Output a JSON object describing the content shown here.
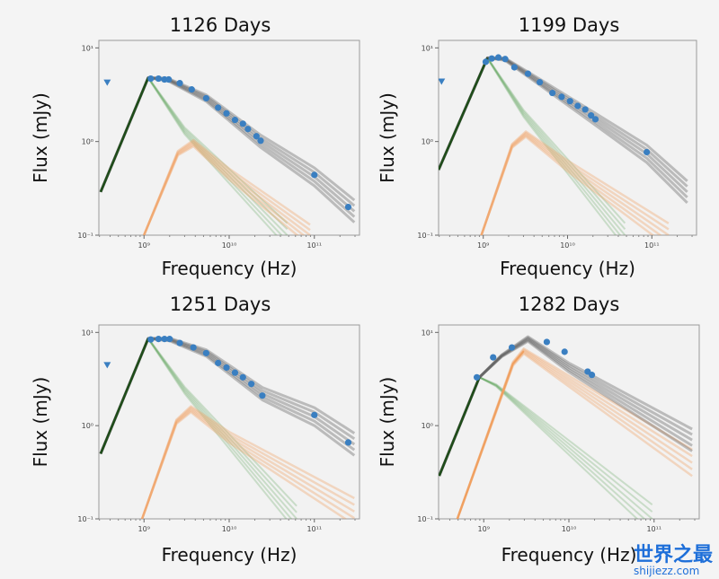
{
  "chart_data": {
    "type": "line",
    "x_scale": "log",
    "y_scale": "log",
    "xlim_log10_hz": [
      8.47,
      11.53
    ],
    "ylim_log10_mjy": [
      -1,
      1.08
    ],
    "x_tick_labels": [
      "10⁹",
      "10¹⁰",
      "10¹¹"
    ],
    "x_tick_values_hz": [
      1000000000.0,
      10000000000.0,
      100000000000.0
    ],
    "y_tick_labels": [
      "10⁻¹",
      "10⁰",
      "10¹"
    ],
    "y_tick_values_mjy": [
      0.1,
      1,
      10
    ],
    "colors": {
      "data": "#3a7fc1",
      "total": "#555555",
      "component1": "#4f9a4a",
      "component1_dark": "#1f4d1a",
      "component2": "#f0a060"
    },
    "panels": [
      {
        "title": "1126 Days",
        "xlabel": "Frequency (Hz)",
        "ylabel": "Flux (mJy)",
        "upper_limits": [
          [
            370000000.0,
            4.3
          ]
        ],
        "points": [
          [
            1200000000.0,
            4.7
          ],
          [
            1480000000.0,
            4.7
          ],
          [
            1740000000.0,
            4.6
          ],
          [
            1950000000.0,
            4.6
          ],
          [
            2630000000.0,
            4.2
          ],
          [
            3630000000.0,
            3.6
          ],
          [
            5370000000.0,
            2.9
          ],
          [
            7410000000.0,
            2.3
          ],
          [
            9300000000.0,
            2.0
          ],
          [
            11700000000.0,
            1.7
          ],
          [
            14500000000.0,
            1.55
          ],
          [
            16600000000.0,
            1.36
          ],
          [
            20900000000.0,
            1.14
          ],
          [
            23400000000.0,
            1.02
          ],
          [
            100000000000.0,
            0.44
          ],
          [
            250000000000.0,
            0.2
          ]
        ],
        "component1": [
          [
            310000000.0,
            0.29
          ],
          [
            1120000000.0,
            4.8
          ],
          [
            3000000000.0,
            1.3
          ],
          [
            48000000000.0,
            0.1
          ]
        ],
        "component2": [
          [
            1000000000.0,
            0.1
          ],
          [
            2500000000.0,
            0.75
          ],
          [
            3800000000.0,
            0.96
          ],
          [
            10000000000.0,
            0.45
          ],
          [
            89000000000.0,
            0.1
          ]
        ],
        "total": [
          [
            310000000.0,
            0.29
          ],
          [
            1120000000.0,
            4.8
          ],
          [
            1900000000.0,
            4.6
          ],
          [
            5400000000.0,
            2.9
          ],
          [
            23000000000.0,
            1.02
          ],
          [
            100000000000.0,
            0.42
          ],
          [
            295000000000.0,
            0.18
          ]
        ]
      },
      {
        "title": "1199 Days",
        "xlabel": "Frequency (Hz)",
        "ylabel": "Flux (mJy)",
        "upper_limits": [
          [
            320000000.0,
            4.4
          ]
        ],
        "points": [
          [
            1070000000.0,
            7.1
          ],
          [
            1260000000.0,
            7.7
          ],
          [
            1510000000.0,
            7.9
          ],
          [
            1820000000.0,
            7.6
          ],
          [
            2340000000.0,
            6.2
          ],
          [
            3390000000.0,
            5.3
          ],
          [
            4680000000.0,
            4.3
          ],
          [
            6610000000.0,
            3.3
          ],
          [
            8500000000.0,
            3.0
          ],
          [
            10700000000.0,
            2.7
          ],
          [
            13200000000.0,
            2.4
          ],
          [
            16200000000.0,
            2.2
          ],
          [
            19000000000.0,
            1.9
          ],
          [
            21400000000.0,
            1.73
          ],
          [
            87000000000.0,
            0.77
          ]
        ],
        "component1": [
          [
            295000000.0,
            0.5
          ],
          [
            1120000000.0,
            7.8
          ],
          [
            3000000000.0,
            2.0
          ],
          [
            48000000000.0,
            0.1
          ]
        ],
        "component2": [
          [
            950000000.0,
            0.1
          ],
          [
            2200000000.0,
            0.9
          ],
          [
            3200000000.0,
            1.2
          ],
          [
            10000000000.0,
            0.55
          ],
          [
            158000000000.0,
            0.1
          ]
        ],
        "total": [
          [
            295000000.0,
            0.5
          ],
          [
            1120000000.0,
            7.8
          ],
          [
            1800000000.0,
            7.6
          ],
          [
            4700000000.0,
            4.3
          ],
          [
            21000000000.0,
            1.75
          ],
          [
            87000000000.0,
            0.74
          ],
          [
            263000000000.0,
            0.29
          ]
        ]
      },
      {
        "title": "1251 Days",
        "xlabel": "Frequency (Hz)",
        "ylabel": "Flux (mJy)",
        "upper_limits": [
          [
            370000000.0,
            4.5
          ]
        ],
        "points": [
          [
            1200000000.0,
            8.4
          ],
          [
            1480000000.0,
            8.5
          ],
          [
            1740000000.0,
            8.5
          ],
          [
            2000000000.0,
            8.5
          ],
          [
            2630000000.0,
            7.7
          ],
          [
            3800000000.0,
            6.9
          ],
          [
            5370000000.0,
            6.0
          ],
          [
            7410000000.0,
            4.7
          ],
          [
            9300000000.0,
            4.2
          ],
          [
            11700000000.0,
            3.7
          ],
          [
            14500000000.0,
            3.3
          ],
          [
            18200000000.0,
            2.8
          ],
          [
            24500000000.0,
            2.1
          ],
          [
            100000000000.0,
            1.3
          ],
          [
            250000000000.0,
            0.66
          ]
        ],
        "component1": [
          [
            310000000.0,
            0.5
          ],
          [
            1120000000.0,
            8.6
          ],
          [
            3000000000.0,
            2.4
          ],
          [
            62000000000.0,
            0.1
          ]
        ],
        "component2": [
          [
            950000000.0,
            0.1
          ],
          [
            2400000000.0,
            1.1
          ],
          [
            3550000000.0,
            1.5
          ],
          [
            10000000000.0,
            0.75
          ],
          [
            295000000000.0,
            0.12
          ]
        ],
        "total": [
          [
            310000000.0,
            0.5
          ],
          [
            1120000000.0,
            8.6
          ],
          [
            2000000000.0,
            8.4
          ],
          [
            5400000000.0,
            6.0
          ],
          [
            24500000000.0,
            2.2
          ],
          [
            100000000000.0,
            1.25
          ],
          [
            295000000000.0,
            0.63
          ]
        ]
      },
      {
        "title": "1282 Days",
        "xlabel": "Frequency (Hz)",
        "ylabel": "Flux (mJy)",
        "upper_limits": [],
        "points": [
          [
            830000000.0,
            3.3
          ],
          [
            1290000000.0,
            5.4
          ],
          [
            2140000000.0,
            6.9
          ],
          [
            5500000000.0,
            7.9
          ],
          [
            8900000000.0,
            6.2
          ],
          [
            16600000000.0,
            3.8
          ],
          [
            18600000000.0,
            3.5
          ]
        ],
        "component1": [
          [
            300000000.0,
            0.29
          ],
          [
            890000000.0,
            3.3
          ],
          [
            1400000000.0,
            2.7
          ],
          [
            95000000000.0,
            0.1
          ]
        ],
        "component2": [
          [
            490000000.0,
            0.1
          ],
          [
            2200000000.0,
            4.6
          ],
          [
            2950000000.0,
            6.3
          ],
          [
            10000000000.0,
            3.0
          ],
          [
            280000000000.0,
            0.4
          ]
        ],
        "total": [
          [
            300000000.0,
            0.29
          ],
          [
            890000000.0,
            3.3
          ],
          [
            1620000000.0,
            5.6
          ],
          [
            3300000000.0,
            8.5
          ],
          [
            10000000000.0,
            4.2
          ],
          [
            280000000000.0,
            0.7
          ]
        ]
      }
    ]
  },
  "watermark": {
    "title": "世界之最",
    "url": "shijiezz.com"
  }
}
